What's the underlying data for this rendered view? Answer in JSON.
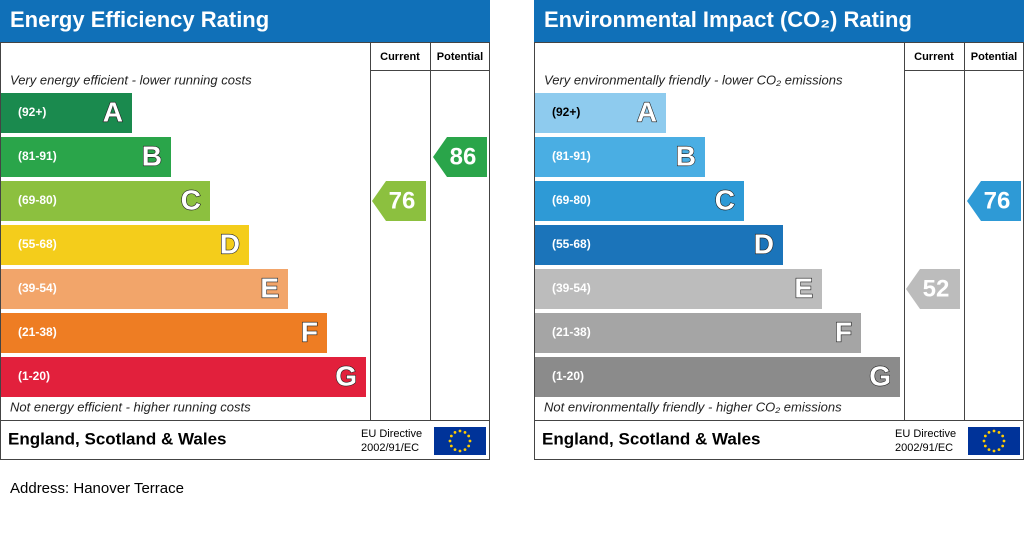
{
  "panels": [
    {
      "title": "Energy Efficiency Rating",
      "headers": [
        "Current",
        "Potential"
      ],
      "top_text": "Very energy efficient - lower running costs",
      "bottom_text": "Not energy efficient - higher running costs",
      "bands": [
        {
          "range": "(92+)",
          "letter": "A",
          "color": "#1a8a4e",
          "text_color": "#ffffff"
        },
        {
          "range": "(81-91)",
          "letter": "B",
          "color": "#2aa54a",
          "text_color": "#ffffff"
        },
        {
          "range": "(69-80)",
          "letter": "C",
          "color": "#8cc03f",
          "text_color": "#ffffff"
        },
        {
          "range": "(55-68)",
          "letter": "D",
          "color": "#f4cd1b",
          "text_color": "#ffffff"
        },
        {
          "range": "(39-54)",
          "letter": "E",
          "color": "#f2a56a",
          "text_color": "#ffffff"
        },
        {
          "range": "(21-38)",
          "letter": "F",
          "color": "#ee7d23",
          "text_color": "#ffffff"
        },
        {
          "range": "(1-20)",
          "letter": "G",
          "color": "#e2203c",
          "text_color": "#ffffff"
        }
      ],
      "current": 76,
      "potential": 86,
      "footer": "England, Scotland & Wales",
      "directive": [
        "EU Directive",
        "2002/91/EC"
      ]
    },
    {
      "title": "Environmental Impact (CO₂) Rating",
      "headers": [
        "Current",
        "Potential"
      ],
      "top_text": "Very environmentally friendly - lower CO₂ emissions",
      "bottom_text": "Not environmentally friendly - higher CO₂ emissions",
      "bands": [
        {
          "range": "(92+)",
          "letter": "A",
          "color": "#8ecbee",
          "text_color": "#000000"
        },
        {
          "range": "(81-91)",
          "letter": "B",
          "color": "#4aaee3",
          "text_color": "#ffffff"
        },
        {
          "range": "(69-80)",
          "letter": "C",
          "color": "#2e9ad6",
          "text_color": "#ffffff"
        },
        {
          "range": "(55-68)",
          "letter": "D",
          "color": "#1b74ba",
          "text_color": "#ffffff"
        },
        {
          "range": "(39-54)",
          "letter": "E",
          "color": "#bcbcbc",
          "text_color": "#ffffff"
        },
        {
          "range": "(21-38)",
          "letter": "F",
          "color": "#a5a5a5",
          "text_color": "#ffffff"
        },
        {
          "range": "(1-20)",
          "letter": "G",
          "color": "#8b8b8b",
          "text_color": "#ffffff"
        }
      ],
      "current": 52,
      "potential": 76,
      "footer": "England, Scotland & Wales",
      "directive": [
        "EU Directive",
        "2002/91/EC"
      ]
    }
  ],
  "address": "Address: Hanover Terrace"
}
